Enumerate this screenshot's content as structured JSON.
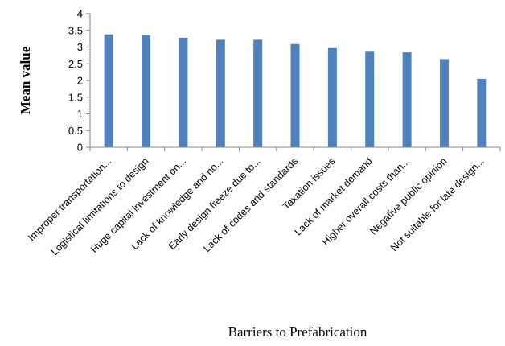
{
  "chart_data": {
    "type": "bar",
    "title": "",
    "xlabel": "Barriers to Prefabrication",
    "ylabel": "Mean value",
    "ylim": [
      0,
      4
    ],
    "yticks": [
      "0",
      "0.5",
      "1",
      "1.5",
      "2",
      "2.5",
      "3",
      "3.5",
      "4"
    ],
    "grid": false,
    "legend": "none",
    "categories": [
      "Improper transportation...",
      "Logistical limitations to design",
      "Huge capital investment on...",
      "Lack of knowledge and no...",
      "Early design freeze due to...",
      "Lack of codes and standards",
      "Taxation issues",
      "Lack of market demand",
      "Higher overall costs than...",
      "Negative public opinion",
      "Not suitable for late design..."
    ],
    "values": [
      3.38,
      3.35,
      3.28,
      3.22,
      3.22,
      3.09,
      2.97,
      2.86,
      2.84,
      2.64,
      2.05
    ],
    "colors": {
      "bar": "#4F81BD",
      "axis": "#868686"
    }
  }
}
